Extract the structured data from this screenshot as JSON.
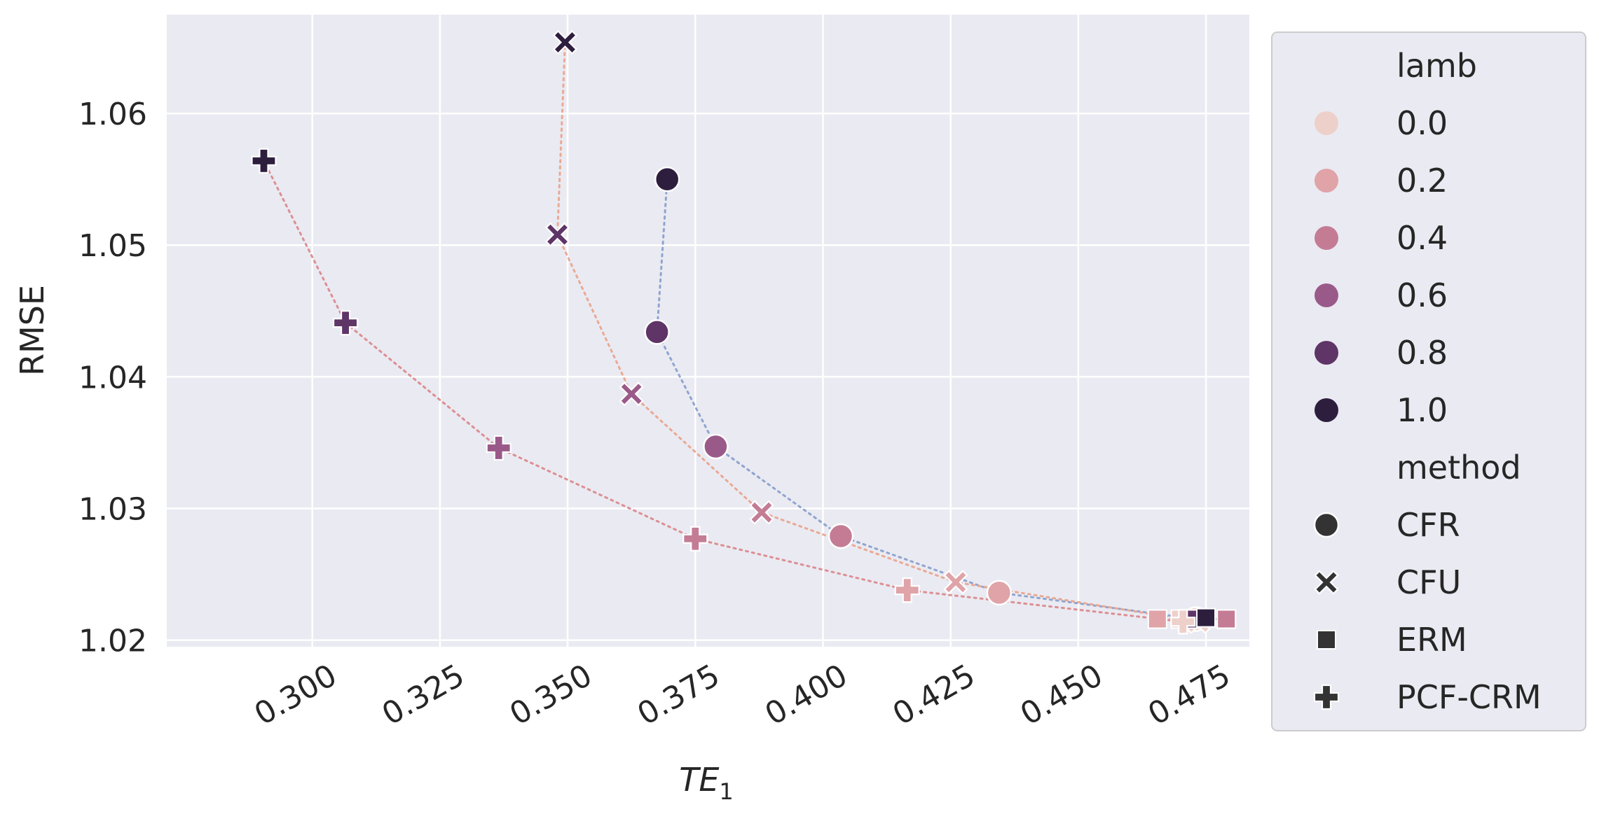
{
  "chart_data": {
    "type": "scatter",
    "title": "",
    "xlabel_main": "TE",
    "xlabel_sub": "1",
    "ylabel": "RMSE",
    "xlim": [
      0.2715,
      0.4835
    ],
    "ylim": [
      1.0195,
      1.0675
    ],
    "x_ticks": [
      0.3,
      0.325,
      0.35,
      0.375,
      0.4,
      0.425,
      0.45,
      0.475
    ],
    "x_tick_labels": [
      "0.300",
      "0.325",
      "0.350",
      "0.375",
      "0.400",
      "0.425",
      "0.450",
      "0.475"
    ],
    "y_ticks": [
      1.02,
      1.03,
      1.04,
      1.05,
      1.06
    ],
    "y_tick_labels": [
      "1.02",
      "1.03",
      "1.04",
      "1.05",
      "1.06"
    ],
    "grid": true,
    "background": "#eaeaf2",
    "legend": {
      "placement": "outside-right",
      "hue_title": "lamb",
      "hue_entries": [
        {
          "label": "0.0",
          "color": "#eed0cb"
        },
        {
          "label": "0.2",
          "color": "#dfa3a8"
        },
        {
          "label": "0.4",
          "color": "#c47c95"
        },
        {
          "label": "0.6",
          "color": "#9a5a89"
        },
        {
          "label": "0.8",
          "color": "#5f3466"
        },
        {
          "label": "1.0",
          "color": "#2d1e3e"
        }
      ],
      "style_title": "method",
      "style_entries": [
        {
          "label": "CFR",
          "marker": "circle"
        },
        {
          "label": "CFU",
          "marker": "x"
        },
        {
          "label": "ERM",
          "marker": "square"
        },
        {
          "label": "PCF-CRM",
          "marker": "plus"
        }
      ]
    },
    "series": [
      {
        "method": "CFR",
        "marker": "circle",
        "line_color": "#8fa5cf",
        "points": [
          {
            "x": 0.473,
            "y": 1.0216,
            "lamb": "0.0"
          },
          {
            "x": 0.4345,
            "y": 1.0236,
            "lamb": "0.2"
          },
          {
            "x": 0.4035,
            "y": 1.0279,
            "lamb": "0.4"
          },
          {
            "x": 0.379,
            "y": 1.0347,
            "lamb": "0.6"
          },
          {
            "x": 0.3675,
            "y": 1.0434,
            "lamb": "0.8"
          },
          {
            "x": 0.3695,
            "y": 1.055,
            "lamb": "1.0"
          }
        ]
      },
      {
        "method": "CFU",
        "marker": "x",
        "line_color": "#e9a993",
        "points": [
          {
            "x": 0.4735,
            "y": 1.0214,
            "lamb": "0.0"
          },
          {
            "x": 0.426,
            "y": 1.0244,
            "lamb": "0.2"
          },
          {
            "x": 0.388,
            "y": 1.0297,
            "lamb": "0.4"
          },
          {
            "x": 0.3625,
            "y": 1.0387,
            "lamb": "0.6"
          },
          {
            "x": 0.348,
            "y": 1.0508,
            "lamb": "0.8"
          },
          {
            "x": 0.3495,
            "y": 1.0654,
            "lamb": "1.0"
          }
        ]
      },
      {
        "method": "ERM",
        "marker": "square",
        "line_color": "#a8c39a",
        "points": [
          {
            "x": 0.4655,
            "y": 1.0216,
            "lamb": "0.2"
          },
          {
            "x": 0.47,
            "y": 1.0216,
            "lamb": "0.0"
          },
          {
            "x": 0.472,
            "y": 1.0216,
            "lamb": "0.8"
          },
          {
            "x": 0.475,
            "y": 1.0217,
            "lamb": "1.0"
          },
          {
            "x": 0.479,
            "y": 1.0216,
            "lamb": "0.4"
          }
        ]
      },
      {
        "method": "PCF-CRM",
        "marker": "plus",
        "line_color": "#dc8f92",
        "points": [
          {
            "x": 0.4705,
            "y": 1.0214,
            "lamb": "0.0"
          },
          {
            "x": 0.4165,
            "y": 1.0238,
            "lamb": "0.2"
          },
          {
            "x": 0.375,
            "y": 1.0277,
            "lamb": "0.4"
          },
          {
            "x": 0.3365,
            "y": 1.0346,
            "lamb": "0.6"
          },
          {
            "x": 0.3065,
            "y": 1.0441,
            "lamb": "0.8"
          },
          {
            "x": 0.2905,
            "y": 1.0564,
            "lamb": "1.0"
          }
        ]
      }
    ]
  }
}
